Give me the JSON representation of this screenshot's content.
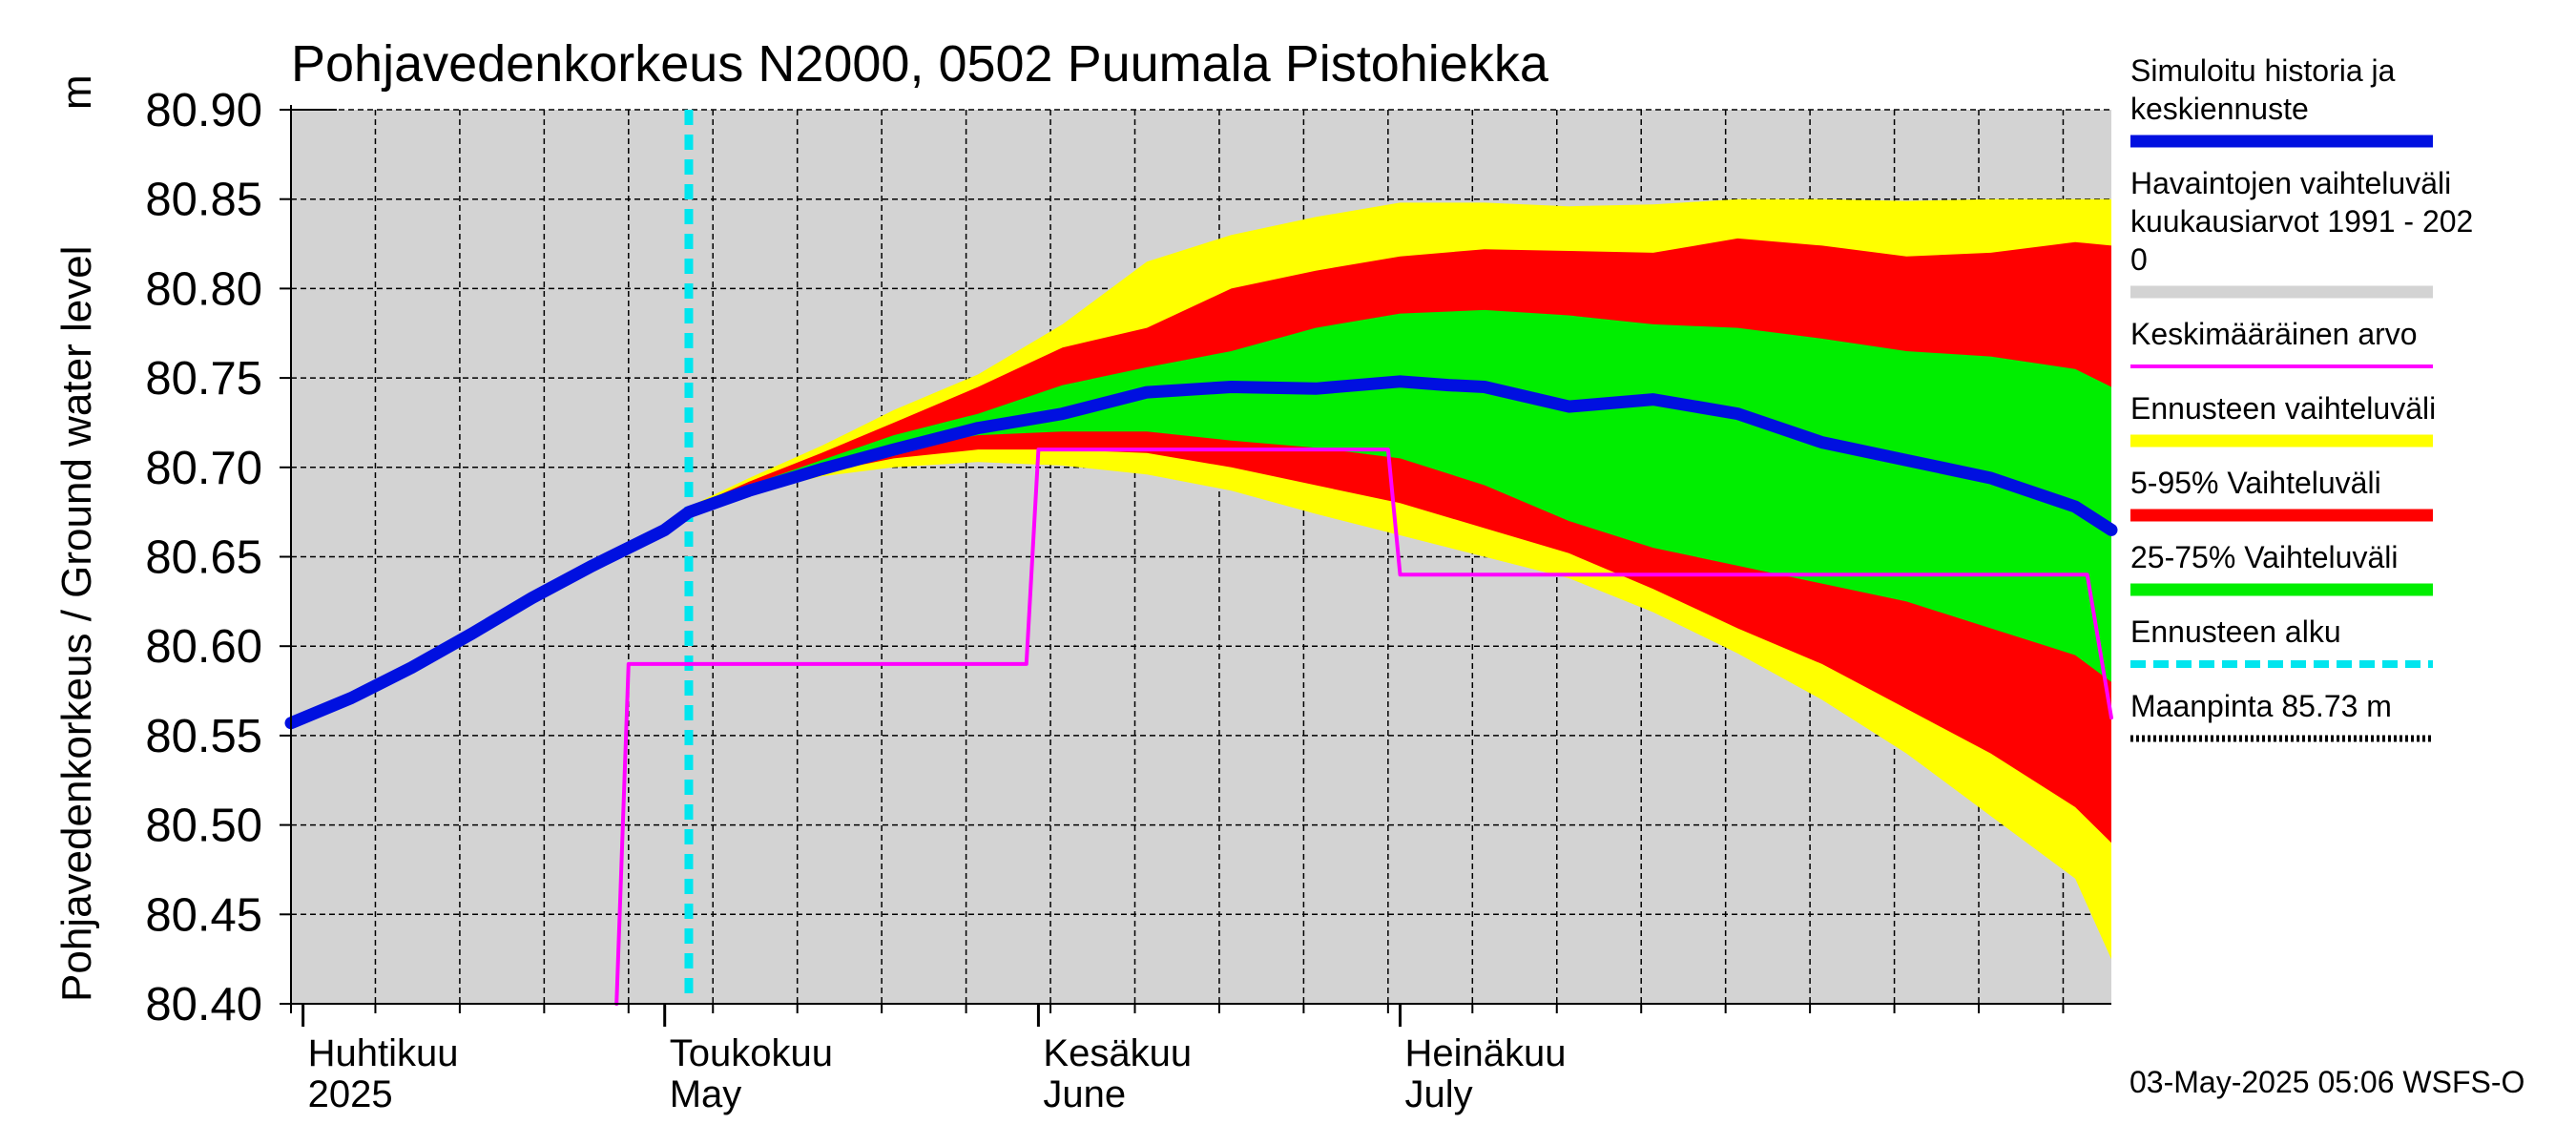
{
  "chart_data": {
    "type": "area",
    "title": "Pohjavedenkorkeus N2000, 0502 Puumala Pistohiekka",
    "ylabel": "Pohjavedenkorkeus / Ground water level",
    "yunit": "m",
    "ylim": [
      80.4,
      80.9
    ],
    "yticks": [
      80.9,
      80.85,
      80.8,
      80.75,
      80.7,
      80.65,
      80.6,
      80.55,
      80.5,
      80.45,
      80.4
    ],
    "xlim": [
      "2025-03-31",
      "2025-08-29"
    ],
    "grid": true,
    "month_labels": [
      {
        "date": "2025-04-01",
        "line1": "Huhtikuu",
        "line2": "2025"
      },
      {
        "date": "2025-05-01",
        "line1": "Toukokuu",
        "line2": "May"
      },
      {
        "date": "2025-06-01",
        "line1": "Kesäkuu",
        "line2": "June"
      },
      {
        "date": "2025-07-01",
        "line1": "Heinäkuu",
        "line2": "July"
      }
    ],
    "forecast_start": "2025-05-03",
    "history_range": [
      80.4,
      80.9
    ],
    "bands": {
      "dates": [
        "2025-05-03",
        "2025-05-08",
        "2025-05-14",
        "2025-05-20",
        "2025-05-27",
        "2025-06-03",
        "2025-06-10",
        "2025-06-17",
        "2025-06-24",
        "2025-07-01",
        "2025-07-08",
        "2025-07-15",
        "2025-07-22",
        "2025-07-29",
        "2025-08-05",
        "2025-08-12",
        "2025-08-19",
        "2025-08-26",
        "2025-08-29"
      ],
      "p0": [
        80.675,
        80.685,
        80.695,
        80.7,
        80.703,
        80.701,
        80.696,
        80.687,
        80.674,
        80.662,
        80.65,
        80.638,
        80.619,
        80.596,
        80.57,
        80.54,
        80.505,
        80.47,
        80.425
      ],
      "p5": [
        80.675,
        80.686,
        80.697,
        80.705,
        80.71,
        80.71,
        80.708,
        80.7,
        80.69,
        80.68,
        80.666,
        80.652,
        80.632,
        80.61,
        80.59,
        80.565,
        80.54,
        80.51,
        80.49
      ],
      "p25": [
        80.676,
        80.688,
        80.7,
        80.71,
        80.718,
        80.72,
        80.72,
        80.715,
        80.711,
        80.705,
        80.69,
        80.67,
        80.655,
        80.645,
        80.635,
        80.625,
        80.61,
        80.595,
        80.58
      ],
      "p75": [
        80.676,
        80.69,
        80.704,
        80.718,
        80.73,
        80.746,
        80.756,
        80.765,
        80.778,
        80.786,
        80.788,
        80.785,
        80.78,
        80.778,
        80.772,
        80.765,
        80.762,
        80.755,
        80.745
      ],
      "p95": [
        80.677,
        80.692,
        80.708,
        80.725,
        80.745,
        80.767,
        80.778,
        80.8,
        80.81,
        80.818,
        80.822,
        80.821,
        80.82,
        80.828,
        80.824,
        80.818,
        80.82,
        80.826,
        80.824
      ],
      "p100": [
        80.678,
        80.694,
        80.712,
        80.732,
        80.752,
        80.78,
        80.815,
        80.83,
        80.84,
        80.848,
        80.848,
        80.846,
        80.847,
        80.85,
        80.85,
        80.849,
        80.85,
        80.85,
        80.85
      ]
    },
    "series": [
      {
        "name": "Simuloitu historia ja keskiennuste",
        "color": "#0010e0",
        "dates": [
          "2025-03-31",
          "2025-04-05",
          "2025-04-10",
          "2025-04-15",
          "2025-04-20",
          "2025-04-25",
          "2025-05-01",
          "2025-05-03",
          "2025-05-08",
          "2025-05-14",
          "2025-05-20",
          "2025-05-27",
          "2025-06-03",
          "2025-06-10",
          "2025-06-17",
          "2025-06-24",
          "2025-07-01",
          "2025-07-05",
          "2025-07-08",
          "2025-07-15",
          "2025-07-22",
          "2025-07-29",
          "2025-08-05",
          "2025-08-12",
          "2025-08-19",
          "2025-08-26",
          "2025-08-29"
        ],
        "values": [
          80.557,
          80.571,
          80.588,
          80.607,
          80.627,
          80.645,
          80.665,
          80.675,
          80.687,
          80.699,
          80.71,
          80.722,
          80.73,
          80.742,
          80.745,
          80.744,
          80.748,
          80.746,
          80.745,
          80.734,
          80.738,
          80.73,
          80.714,
          80.704,
          80.694,
          80.678,
          80.665
        ]
      },
      {
        "name": "Keskimääräinen arvo",
        "color": "#ff00ff",
        "dates": [
          "2025-04-27",
          "2025-04-28",
          "2025-05-31",
          "2025-06-01",
          "2025-06-30",
          "2025-07-01",
          "2025-08-27",
          "2025-08-29"
        ],
        "values": [
          80.4,
          80.59,
          80.59,
          80.71,
          80.71,
          80.64,
          80.64,
          80.56
        ]
      }
    ],
    "legend": [
      {
        "label": "Simuloitu historia ja keskiennuste",
        "lines": [
          "Simuloitu historia ja",
          "keskiennuste"
        ],
        "color": "#0010e0",
        "style": "thick"
      },
      {
        "label": "Havaintojen vaihteluväli kuukausiarvot 1991 - 2020",
        "lines": [
          "Havaintojen vaihteluväli",
          " kuukausiarvot 1991 - 202",
          "0"
        ],
        "color": "#d3d3d3",
        "style": "thick"
      },
      {
        "label": "Keskimääräinen arvo",
        "lines": [
          "Keskimääräinen arvo"
        ],
        "color": "#ff00ff",
        "style": "thin"
      },
      {
        "label": "Ennusteen vaihteluväli",
        "lines": [
          "Ennusteen vaihteluväli"
        ],
        "color": "#ffff00",
        "style": "thick"
      },
      {
        "label": "5-95% Vaihteluväli",
        "lines": [
          "5-95% Vaihteluväli"
        ],
        "color": "#ff0000",
        "style": "thick"
      },
      {
        "label": "25-75% Vaihteluväli",
        "lines": [
          "25-75% Vaihteluväli"
        ],
        "color": "#00ee00",
        "style": "thick"
      },
      {
        "label": "Ennusteen alku",
        "lines": [
          "Ennusteen alku"
        ],
        "color": "#00e5ee",
        "style": "dashed"
      },
      {
        "label": "Maanpinta 85.73 m",
        "lines": [
          "Maanpinta 85.73 m"
        ],
        "color": "#000000",
        "style": "dotted"
      }
    ],
    "legend_position": "right",
    "footer": "03-May-2025 05:06 WSFS-O"
  }
}
